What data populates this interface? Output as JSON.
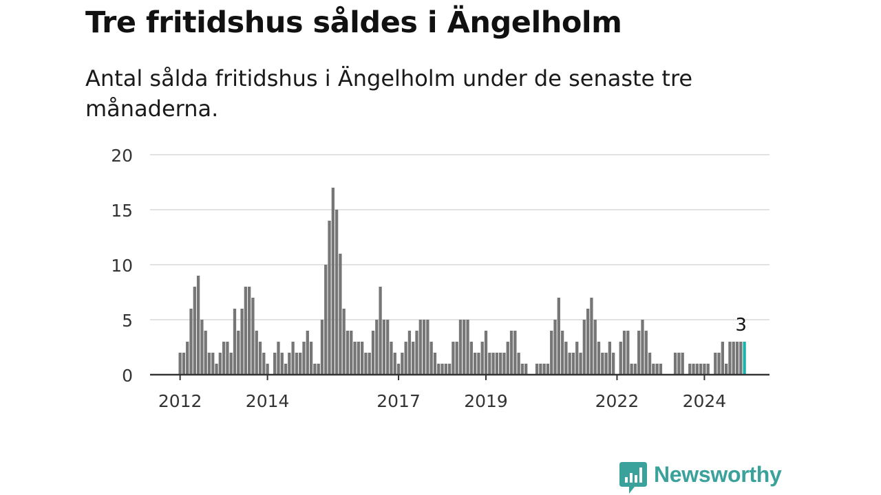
{
  "title": "Tre fritidshus såldes i Ängelholm",
  "subtitle": "Antal sålda fritidshus i Ängelholm under de senaste tre månaderna.",
  "brand": {
    "name": "Newsworthy",
    "color": "#3aa29a",
    "icon": "bar-chart-bubble-icon"
  },
  "colors": {
    "bar": "#767676",
    "highlight": "#1ab3ab",
    "grid": "#d9d9d9",
    "axis": "#333333"
  },
  "chart_data": {
    "type": "bar",
    "start_year": 2012,
    "frequency": "monthly",
    "y_ticks": [
      0,
      5,
      10,
      15,
      20
    ],
    "x_ticks": [
      "2012",
      "2014",
      "2017",
      "2019",
      "2022",
      "2024"
    ],
    "ylim": [
      0,
      20
    ],
    "grid": true,
    "highlight": {
      "year": 2024,
      "month": 12,
      "label": "3"
    },
    "series": [
      {
        "year": 2012,
        "values": [
          2,
          2,
          3,
          6,
          8,
          9,
          5,
          4,
          2,
          2,
          1,
          2
        ]
      },
      {
        "year": 2013,
        "values": [
          3,
          3,
          2,
          6,
          4,
          6,
          8,
          8,
          7,
          4,
          3,
          2
        ]
      },
      {
        "year": 2014,
        "values": [
          1,
          null,
          2,
          3,
          2,
          1,
          2,
          3,
          2,
          2,
          3,
          4
        ]
      },
      {
        "year": 2015,
        "values": [
          3,
          1,
          1,
          5,
          10,
          14,
          17,
          15,
          11,
          6,
          4,
          4
        ]
      },
      {
        "year": 2016,
        "values": [
          3,
          3,
          3,
          2,
          2,
          4,
          5,
          8,
          5,
          5,
          3,
          2
        ]
      },
      {
        "year": 2017,
        "values": [
          1,
          2,
          3,
          4,
          3,
          4,
          5,
          5,
          5,
          3,
          2,
          1
        ]
      },
      {
        "year": 2018,
        "values": [
          1,
          1,
          1,
          3,
          3,
          5,
          5,
          5,
          3,
          2,
          2,
          3
        ]
      },
      {
        "year": 2019,
        "values": [
          4,
          2,
          2,
          2,
          2,
          2,
          3,
          4,
          4,
          2,
          1,
          1
        ]
      },
      {
        "year": 2020,
        "values": [
          null,
          null,
          1,
          1,
          1,
          1,
          4,
          5,
          7,
          4,
          3,
          2
        ]
      },
      {
        "year": 2021,
        "values": [
          2,
          3,
          2,
          5,
          6,
          7,
          5,
          3,
          2,
          2,
          3,
          2
        ]
      },
      {
        "year": 2022,
        "values": [
          null,
          3,
          4,
          4,
          1,
          1,
          4,
          5,
          4,
          2,
          1,
          1
        ]
      },
      {
        "year": 2023,
        "values": [
          1,
          null,
          null,
          null,
          2,
          2,
          2,
          null,
          1,
          1,
          1,
          1
        ]
      },
      {
        "year": 2024,
        "values": [
          1,
          1,
          null,
          2,
          2,
          3,
          1,
          3,
          3,
          3,
          3,
          3
        ]
      }
    ]
  }
}
